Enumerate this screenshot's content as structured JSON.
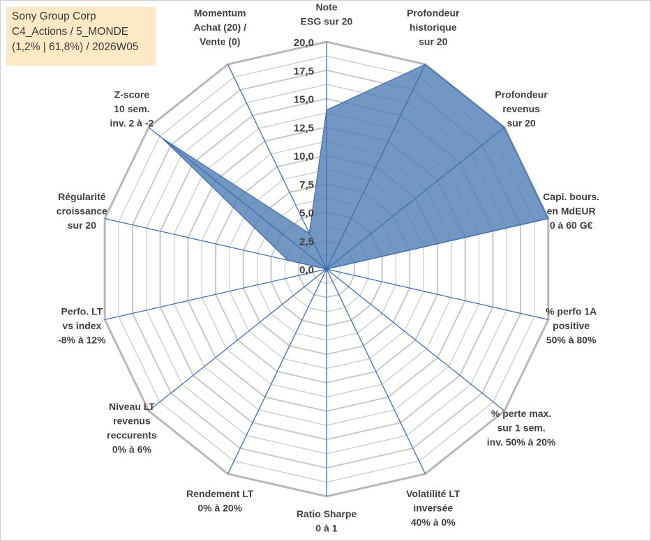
{
  "header": {
    "company": "Sony Group Corp",
    "category": "C4_Actions / 5_MONDE",
    "detail": "(1,2% | 61,8%) / 2026W05"
  },
  "colors": {
    "fill": "#4f7db4",
    "stroke": "#3f6fb0",
    "grid": "#c8c8c8",
    "spoke": "#3f6fb0",
    "title_bg": "#fde9c4"
  },
  "chart_data": {
    "type": "radar",
    "range": [
      0,
      20
    ],
    "major_step": 2.5,
    "tick_labels": [
      "0,0",
      "2,5",
      "5,0",
      "7,5",
      "10,0",
      "12,5",
      "15,0",
      "17,5",
      "20,0"
    ],
    "axes": [
      {
        "label": [
          "Note",
          "ESG sur 20"
        ],
        "value": 14
      },
      {
        "label": [
          "Profondeur",
          "historique",
          "sur 20"
        ],
        "value": 20
      },
      {
        "label": [
          "Profondeur",
          "revenus",
          "sur 20"
        ],
        "value": 20
      },
      {
        "label": [
          "Capi. bours.",
          "en MdEUR",
          "0 à 60 G€"
        ],
        "value": 20
      },
      {
        "label": [
          "% perfo 1A",
          "positive",
          "50% à 80%"
        ],
        "value": 0
      },
      {
        "label": [
          "% perte max.",
          "sur 1 sem.",
          "inv. 50% à 20%"
        ],
        "value": 0
      },
      {
        "label": [
          "Volatilité LT",
          "inversée",
          "40% à 0%"
        ],
        "value": 0
      },
      {
        "label": [
          "Ratio Sharpe",
          "0 à 1"
        ],
        "value": 0
      },
      {
        "label": [
          "Rendement LT",
          "0% à 20%"
        ],
        "value": 0
      },
      {
        "label": [
          "Niveau LT",
          "revenus",
          "reccurents",
          "0% à 6%"
        ],
        "value": 0
      },
      {
        "label": [
          "Perfo. LT",
          "vs index",
          "-8% à 12%"
        ],
        "value": 0
      },
      {
        "label": [
          "Régularité",
          "croissance",
          "sur 20"
        ],
        "value": 3.5
      },
      {
        "label": [
          "Z-score",
          "10 sem.",
          "inv. 2 à -2"
        ],
        "value": 18.5
      },
      {
        "label": [
          "Momentum",
          "Achat (20) /",
          "Vente (0)"
        ],
        "value": 3.5
      }
    ]
  }
}
